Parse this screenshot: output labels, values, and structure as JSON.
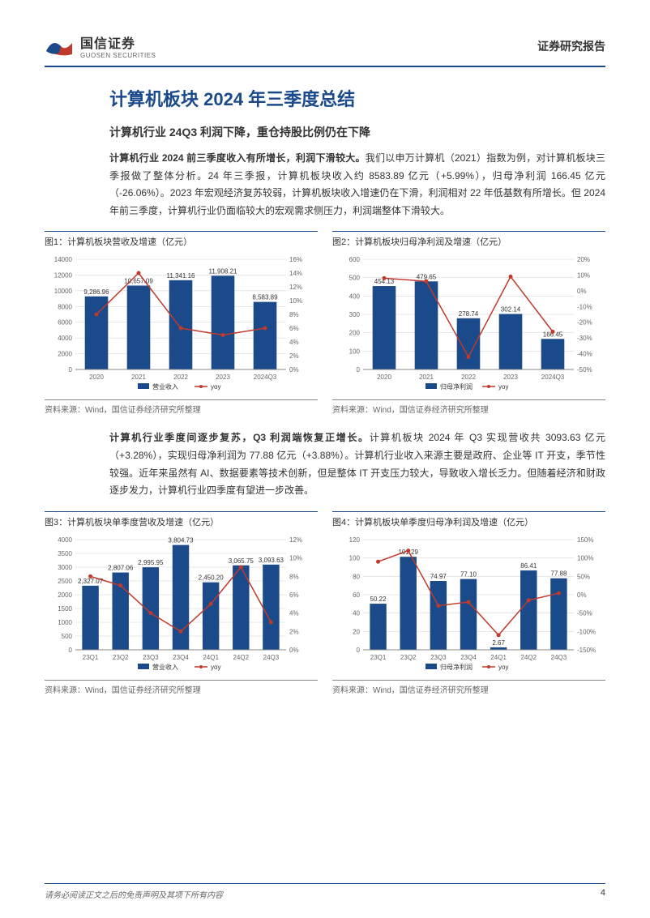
{
  "header": {
    "logo_cn": "国信证券",
    "logo_en": "GUOSEN SECURITIES",
    "report_type": "证券研究报告"
  },
  "main_title": "计算机板块 2024 年三季度总结",
  "section1": {
    "subtitle": "计算机行业 24Q3 利润下降，重仓持股比例仍在下降",
    "para_bold": "计算机行业 2024 前三季度收入有所增长，利润下滑较大。",
    "para_rest": "我们以申万计算机（2021）指数为例，对计算机板块三季报做了整体分析。24 年三季报，计算机板块收入约 8583.89 亿元（+5.99%），归母净利润 166.45 亿元（-26.06%）。2023 年宏观经济复苏较弱，计算机板块收入增速仍在下滑，利润相对 22 年低基数有所增长。但 2024 年前三季度，计算机行业仍面临较大的宏观需求侧压力，利润端整体下滑较大。"
  },
  "section2": {
    "para_bold": "计算机行业季度间逐步复苏，Q3 利润端恢复正增长。",
    "para_rest": "计算机板块 2024 年 Q3 实现营收共 3093.63 亿元（+3.28%），实现归母净利润为 77.88 亿元（+3.88%）。计算机行业收入来源主要是政府、企业等 IT 开支，季节性较强。近年来虽然有 AI、数据要素等技术创新，但是整体 IT 开支压力较大，导致收入增长乏力。但随着经济和财政逐步发力，计算机行业四季度有望进一步改善。"
  },
  "chart1": {
    "title": "图1：计算机板块营收及增速（亿元）",
    "type": "bar-line",
    "categories": [
      "2020",
      "2021",
      "2022",
      "2023",
      "2024Q3"
    ],
    "bar_values": [
      9286.96,
      10657.09,
      11341.16,
      11908.21,
      8583.89
    ],
    "bar_labels": [
      "9,286.96",
      "10,657.09",
      "11,341.16",
      "11,908.21",
      "8,583.89"
    ],
    "line_values_pct": [
      8,
      14,
      6,
      5,
      6
    ],
    "y1_min": 0,
    "y1_max": 14000,
    "y1_ticks": [
      0,
      2000,
      4000,
      6000,
      8000,
      10000,
      12000,
      14000
    ],
    "y2_min": 0,
    "y2_max": 16,
    "y2_ticks": [
      "0%",
      "2%",
      "4%",
      "6%",
      "8%",
      "10%",
      "12%",
      "14%",
      "16%"
    ],
    "bar_color": "#1a4a8a",
    "line_color": "#c0392b",
    "legend_bar": "营业收入",
    "legend_line": "yoy",
    "source": "资料来源：Wind，国信证券经济研究所整理"
  },
  "chart2": {
    "title": "图2：计算机板块归母净利润及增速（亿元）",
    "type": "bar-line",
    "categories": [
      "2020",
      "2021",
      "2022",
      "2023",
      "2024Q3"
    ],
    "bar_values": [
      454.13,
      479.65,
      278.74,
      302.14,
      166.45
    ],
    "bar_labels": [
      "454.13",
      "479.65",
      "278.74",
      "302.14",
      "166.45"
    ],
    "line_values_pct": [
      8,
      6,
      -42,
      9,
      -26
    ],
    "y1_min": 0,
    "y1_max": 600,
    "y1_ticks": [
      0,
      100,
      200,
      300,
      400,
      500,
      600
    ],
    "y2_min": -50,
    "y2_max": 20,
    "y2_ticks": [
      "-50%",
      "-40%",
      "-30%",
      "-20%",
      "-10%",
      "0%",
      "10%",
      "20%"
    ],
    "bar_color": "#1a4a8a",
    "line_color": "#c0392b",
    "legend_bar": "归母净利润",
    "legend_line": "yoy",
    "source": "资料来源：Wind，国信证券经济研究所整理"
  },
  "chart3": {
    "title": "图3：计算机板块单季度营收及增速（亿元）",
    "type": "bar-line",
    "categories": [
      "23Q1",
      "23Q2",
      "23Q3",
      "23Q4",
      "24Q1",
      "24Q2",
      "24Q3"
    ],
    "bar_values": [
      2327.07,
      2807.06,
      2995.95,
      3804.73,
      2450.2,
      3065.75,
      3093.63
    ],
    "bar_labels": [
      "2,327.07",
      "2,807.06",
      "2,995.95",
      "3,804.73",
      "2,450.20",
      "3,065.75",
      "3,093.63"
    ],
    "line_values_pct": [
      8,
      7,
      4,
      2,
      5,
      9,
      3
    ],
    "y1_min": 0,
    "y1_max": 4000,
    "y1_ticks": [
      0,
      500,
      1000,
      1500,
      2000,
      2500,
      3000,
      3500,
      4000
    ],
    "y2_min": 0,
    "y2_max": 12,
    "y2_ticks": [
      "0%",
      "2%",
      "4%",
      "6%",
      "8%",
      "10%",
      "12%"
    ],
    "bar_color": "#1a4a8a",
    "line_color": "#c0392b",
    "legend_bar": "营业收入",
    "legend_line": "yoy",
    "source": "资料来源：Wind，国信证券经济研究所整理"
  },
  "chart4": {
    "title": "图4：计算机板块单季度归母净利润及增速（亿元）",
    "type": "bar-line",
    "categories": [
      "23Q1",
      "23Q2",
      "23Q3",
      "23Q4",
      "24Q1",
      "24Q2",
      "24Q3"
    ],
    "bar_values": [
      50.22,
      101.29,
      74.97,
      77.1,
      2.67,
      86.41,
      77.88
    ],
    "bar_labels": [
      "50.22",
      "101.29",
      "74.97",
      "77.10",
      "2.67",
      "86.41",
      "77.88"
    ],
    "line_values_pct": [
      90,
      120,
      -30,
      -20,
      -110,
      -15,
      4
    ],
    "y1_min": 0,
    "y1_max": 120,
    "y1_ticks": [
      0,
      20,
      40,
      60,
      80,
      100,
      120
    ],
    "y2_min": -150,
    "y2_max": 150,
    "y2_ticks": [
      "-150%",
      "-100%",
      "-50%",
      "0%",
      "50%",
      "100%",
      "150%"
    ],
    "bar_color": "#1a4a8a",
    "line_color": "#c0392b",
    "legend_bar": "归母净利润",
    "legend_line": "yoy",
    "source": "资料来源：Wind，国信证券经济研究所整理"
  },
  "footer": {
    "disclaimer": "请务必阅读正文之后的免责声明及其项下所有内容",
    "page": "4"
  },
  "colors": {
    "brand_blue": "#1a4a8a",
    "line_red": "#c0392b",
    "grid": "#d0d0d0",
    "text": "#333333"
  }
}
